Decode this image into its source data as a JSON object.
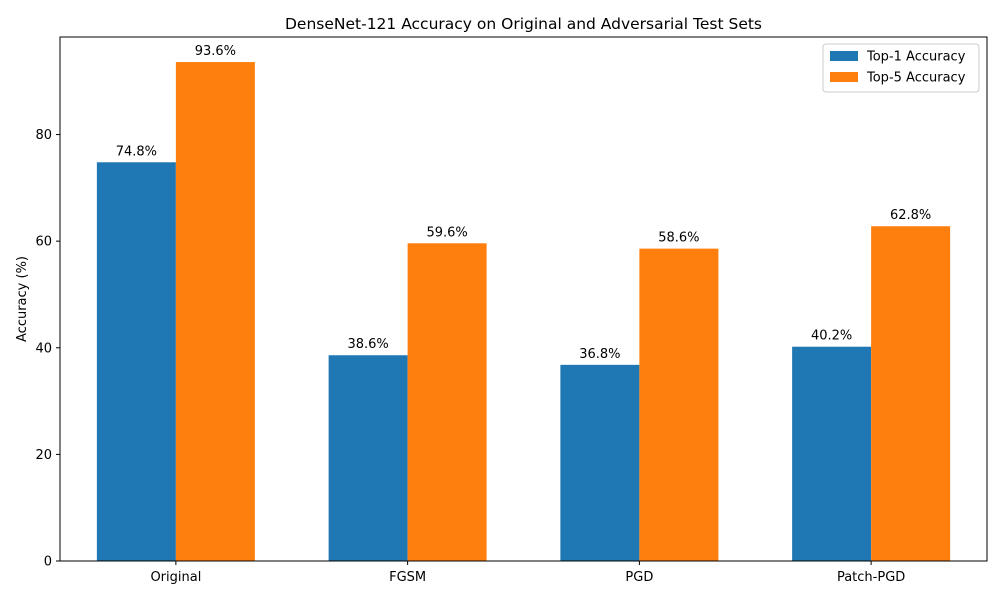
{
  "chart_data": {
    "type": "bar",
    "title": "DenseNet-121 Accuracy on Original and Adversarial Test Sets",
    "xlabel": "",
    "ylabel": "Accuracy (%)",
    "categories": [
      "Original",
      "FGSM",
      "PGD",
      "Patch-PGD"
    ],
    "series": [
      {
        "name": "Top-1 Accuracy",
        "color": "#1f77b4",
        "values": [
          74.8,
          38.6,
          36.8,
          40.2
        ],
        "labels": [
          "74.8%",
          "38.6%",
          "36.8%",
          "40.2%"
        ]
      },
      {
        "name": "Top-5 Accuracy",
        "color": "#ff7f0e",
        "values": [
          93.6,
          59.6,
          58.6,
          62.8
        ],
        "labels": [
          "93.6%",
          "59.6%",
          "58.6%",
          "62.8%"
        ]
      }
    ],
    "ylim": [
      0,
      98.3
    ],
    "yticks": [
      0,
      20,
      40,
      60,
      80
    ],
    "grid": false,
    "legend_position": "top-right"
  }
}
